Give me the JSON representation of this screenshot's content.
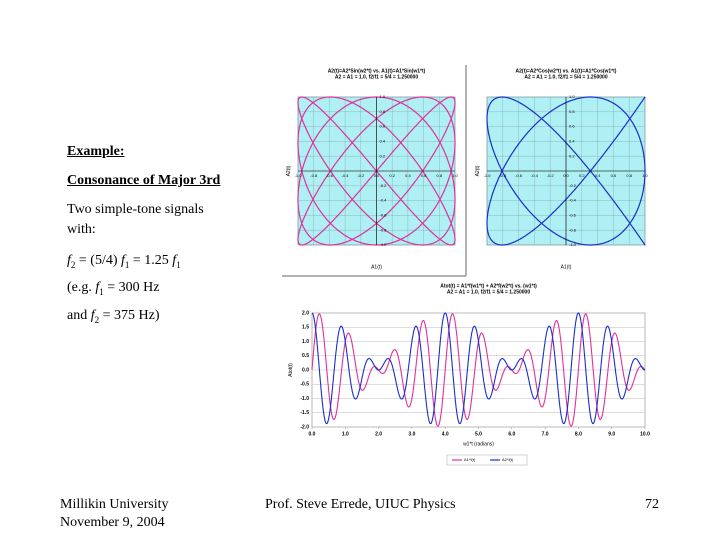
{
  "slide": {
    "heading": "Example:",
    "subheading": "Consonance of Major 3rd",
    "intro": [
      "Two simple-tone signals",
      "with:"
    ],
    "equation": [
      {
        "t": "f"
      },
      {
        "t": "2",
        "sub": true
      },
      {
        "t": " = (5/4) "
      },
      {
        "t": "f"
      },
      {
        "t": "1",
        "sub": true
      },
      {
        "t": " = 1.25 "
      },
      {
        "t": "f"
      },
      {
        "t": "1",
        "sub": true
      }
    ],
    "example1": [
      {
        "t": "(e.g. "
      },
      {
        "t": "f"
      },
      {
        "t": "1",
        "sub": true
      },
      {
        "t": " = 300 Hz"
      }
    ],
    "example2": [
      {
        "t": "and  "
      },
      {
        "t": "f"
      },
      {
        "t": "2",
        "sub": true
      },
      {
        "t": " = 375 Hz)"
      }
    ]
  },
  "footer": {
    "left": [
      "Millikin University",
      "November 9, 2004"
    ],
    "center": "Prof. Steve Errede, UIUC Physics",
    "page": "72"
  },
  "charts": [
    {
      "type": "lissajous",
      "func": "sin",
      "title": "A2(t)=A2*Sin(w2*t) vs. A1(t)=A1*Sin(w1*t)",
      "subtitle": "A2 = A1 = 1.0, f2/f1 = 5/4 = 1.250000",
      "xlabel": "A1(t)",
      "ylabel": "A2(t)",
      "amplitude": 1.0,
      "frequency_ratio": 1.25,
      "color": "#e0309a",
      "background": "#aef0f4",
      "xlim": [
        -1,
        1
      ],
      "ylim": [
        -1,
        1
      ],
      "ticks": [
        {
          "value": -1,
          "label": "-1.0"
        },
        {
          "value": -0.8,
          "label": "-0.8"
        },
        {
          "value": -0.6,
          "label": "-0.6"
        },
        {
          "value": -0.4,
          "label": "-0.4"
        },
        {
          "value": -0.2,
          "label": "-0.2"
        },
        {
          "value": 0,
          "label": "0.0"
        },
        {
          "value": 0.2,
          "label": "0.2"
        },
        {
          "value": 0.4,
          "label": "0.4"
        },
        {
          "value": 0.6,
          "label": "0.6"
        },
        {
          "value": 0.8,
          "label": "0.8"
        },
        {
          "value": 1,
          "label": "1.0"
        }
      ]
    },
    {
      "type": "lissajous",
      "func": "cos",
      "title": "A2(t)=A2*Cos(w2*t) vs. A1(t)=A1*Cos(w1*t)",
      "subtitle": "A2 = A1 = 1.0, f2/f1 = 5/4 = 1.250000",
      "xlabel": "A1(t)",
      "ylabel": "A2(t)",
      "amplitude": 1.0,
      "frequency_ratio": 1.25,
      "color": "#1a2fc8",
      "background": "#aef0f4",
      "xlim": [
        -1,
        1
      ],
      "ylim": [
        -1,
        1
      ],
      "ticks": [
        {
          "value": -1,
          "label": "-1.0"
        },
        {
          "value": -0.8,
          "label": "-0.8"
        },
        {
          "value": -0.6,
          "label": "-0.6"
        },
        {
          "value": -0.4,
          "label": "-0.4"
        },
        {
          "value": -0.2,
          "label": "-0.2"
        },
        {
          "value": 0,
          "label": "0.0"
        },
        {
          "value": 0.2,
          "label": "0.2"
        },
        {
          "value": 0.4,
          "label": "0.4"
        },
        {
          "value": 0.6,
          "label": "0.6"
        },
        {
          "value": 0.8,
          "label": "0.8"
        },
        {
          "value": 1,
          "label": "1.0"
        }
      ]
    },
    {
      "type": "waveform",
      "title": "Atot(t) = A1*f(w1*t) + A2*f(w2*t) vs. (w1*t)",
      "subtitle": "A2 = A1 = 1.0, f2/f1 = 5/4 = 1.250000",
      "xlabel": "w1*t (radians)",
      "ylabel": "Atot(t)",
      "amplitude": 1.0,
      "frequency_ratio": 1.25,
      "series": [
        {
          "name": "A1*f(t)",
          "color": "#e0309a",
          "func": "sin"
        },
        {
          "name": "A2*f(t)",
          "color": "#1a2fc8",
          "func": "cos"
        }
      ],
      "xlim": [
        0,
        10
      ],
      "ylim": [
        -2,
        2
      ],
      "xticks": [
        {
          "value": 0,
          "label": "0.0"
        },
        {
          "value": 1,
          "label": "1.0"
        },
        {
          "value": 2,
          "label": "2.0"
        },
        {
          "value": 3,
          "label": "3.0"
        },
        {
          "value": 4,
          "label": "4.0"
        },
        {
          "value": 5,
          "label": "5.0"
        },
        {
          "value": 6,
          "label": "6.0"
        },
        {
          "value": 7,
          "label": "7.0"
        },
        {
          "value": 8,
          "label": "8.0"
        },
        {
          "value": 9,
          "label": "9.0"
        },
        {
          "value": 10,
          "label": "10.0"
        }
      ],
      "yticks": [
        {
          "value": -2,
          "label": "-2.0"
        },
        {
          "value": -1.5,
          "label": "-1.5"
        },
        {
          "value": -1,
          "label": "-1.0"
        },
        {
          "value": -0.5,
          "label": "-0.5"
        },
        {
          "value": 0,
          "label": "0.0"
        },
        {
          "value": 0.5,
          "label": "0.5"
        },
        {
          "value": 1,
          "label": "1.0"
        },
        {
          "value": 1.5,
          "label": "1.5"
        },
        {
          "value": 2,
          "label": "2.0"
        }
      ]
    }
  ]
}
